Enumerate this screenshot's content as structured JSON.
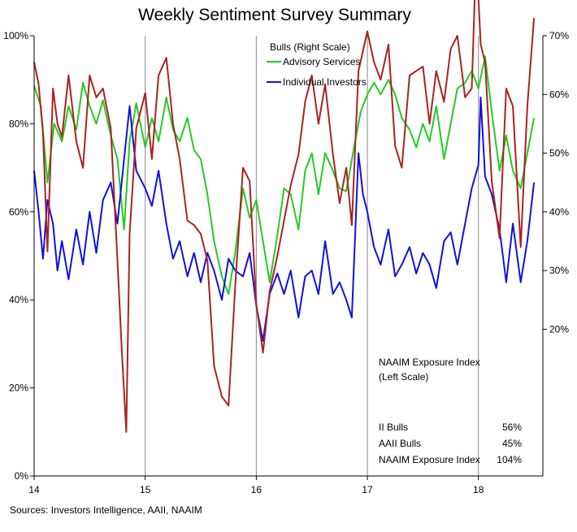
{
  "chart_data": {
    "type": "line",
    "title": "Weekly Sentiment Survey Summary",
    "source": "Sources: Investors Intelligence, AAII, NAAIM",
    "x_axis": {
      "ticks": [
        "14",
        "15",
        "16",
        "17",
        "18"
      ],
      "range": [
        2014.0,
        2018.58
      ],
      "vertical_gridlines_at": [
        2015,
        2016,
        2017,
        2018
      ]
    },
    "y_axis_left": {
      "ticks": [
        "0%",
        "20%",
        "40%",
        "60%",
        "80%",
        "100%"
      ],
      "range": [
        0,
        100
      ]
    },
    "y_axis_right": {
      "ticks": [
        "20%",
        "30%",
        "40%",
        "50%",
        "60%",
        "70%"
      ],
      "range": [
        -5,
        70
      ]
    },
    "legend": {
      "title": "Bulls (Right Scale)",
      "placement": "top-center"
    },
    "naaim_label": [
      "NAAIM  Exposure Index",
      "(Left Scale)"
    ],
    "latest_values": [
      {
        "label": "II Bulls",
        "value": "56%",
        "color": "#33cc33"
      },
      {
        "label": "AAII Bulls",
        "value": "45%",
        "color": "#0000ee"
      },
      {
        "label": "NAAIM Exposure Index",
        "value": "104%",
        "color": "#dd2222"
      }
    ],
    "series": [
      {
        "name": "Advisory Services",
        "axis": "right",
        "color": "#22cc22",
        "points": [
          [
            2014.0,
            61.5
          ],
          [
            2014.06,
            58.0
          ],
          [
            2014.12,
            45.0
          ],
          [
            2014.18,
            55.0
          ],
          [
            2014.25,
            52.0
          ],
          [
            2014.31,
            58.0
          ],
          [
            2014.38,
            54.0
          ],
          [
            2014.44,
            62.0
          ],
          [
            2014.5,
            58.0
          ],
          [
            2014.56,
            55.0
          ],
          [
            2014.62,
            59.0
          ],
          [
            2014.69,
            53.0
          ],
          [
            2014.75,
            49.0
          ],
          [
            2014.81,
            37.0
          ],
          [
            2014.86,
            52.0
          ],
          [
            2014.92,
            58.5
          ],
          [
            2015.0,
            51.0
          ],
          [
            2015.06,
            56.0
          ],
          [
            2015.12,
            52.0
          ],
          [
            2015.19,
            59.5
          ],
          [
            2015.25,
            54.0
          ],
          [
            2015.31,
            52.0
          ],
          [
            2015.38,
            56.0
          ],
          [
            2015.44,
            50.5
          ],
          [
            2015.5,
            49.0
          ],
          [
            2015.56,
            43.0
          ],
          [
            2015.62,
            35.0
          ],
          [
            2015.69,
            29.0
          ],
          [
            2015.75,
            26.0
          ],
          [
            2015.81,
            33.0
          ],
          [
            2015.88,
            44.0
          ],
          [
            2015.94,
            39.0
          ],
          [
            2016.0,
            42.0
          ],
          [
            2016.06,
            35.0
          ],
          [
            2016.12,
            28.0
          ],
          [
            2016.19,
            36.0
          ],
          [
            2016.25,
            44.0
          ],
          [
            2016.31,
            43.0
          ],
          [
            2016.38,
            37.0
          ],
          [
            2016.44,
            47.0
          ],
          [
            2016.5,
            50.0
          ],
          [
            2016.56,
            43.0
          ],
          [
            2016.62,
            50.0
          ],
          [
            2016.69,
            47.0
          ],
          [
            2016.75,
            44.0
          ],
          [
            2016.81,
            43.5
          ],
          [
            2016.88,
            51.0
          ],
          [
            2016.94,
            57.0
          ],
          [
            2017.0,
            60.0
          ],
          [
            2017.06,
            62.0
          ],
          [
            2017.12,
            60.0
          ],
          [
            2017.19,
            62.5
          ],
          [
            2017.25,
            60.0
          ],
          [
            2017.31,
            56.0
          ],
          [
            2017.38,
            54.0
          ],
          [
            2017.44,
            51.0
          ],
          [
            2017.5,
            55.0
          ],
          [
            2017.56,
            52.0
          ],
          [
            2017.62,
            58.0
          ],
          [
            2017.69,
            49.0
          ],
          [
            2017.75,
            55.0
          ],
          [
            2017.81,
            61.0
          ],
          [
            2017.88,
            62.0
          ],
          [
            2017.94,
            64.0
          ],
          [
            2018.0,
            61.0
          ],
          [
            2018.06,
            66.5
          ],
          [
            2018.12,
            57.0
          ],
          [
            2018.19,
            47.0
          ],
          [
            2018.25,
            53.0
          ],
          [
            2018.31,
            47.0
          ],
          [
            2018.38,
            44.0
          ],
          [
            2018.44,
            50.0
          ],
          [
            2018.5,
            56.0
          ]
        ]
      },
      {
        "name": "Individual Investors",
        "axis": "right",
        "color": "#1111dd",
        "points": [
          [
            2014.0,
            47.0
          ],
          [
            2014.04,
            40.0
          ],
          [
            2014.08,
            32.0
          ],
          [
            2014.12,
            42.0
          ],
          [
            2014.17,
            38.0
          ],
          [
            2014.21,
            30.0
          ],
          [
            2014.25,
            35.0
          ],
          [
            2014.31,
            28.5
          ],
          [
            2014.38,
            37.0
          ],
          [
            2014.44,
            31.0
          ],
          [
            2014.5,
            40.0
          ],
          [
            2014.56,
            33.0
          ],
          [
            2014.62,
            42.0
          ],
          [
            2014.69,
            45.0
          ],
          [
            2014.75,
            38.0
          ],
          [
            2014.81,
            49.0
          ],
          [
            2014.86,
            58.0
          ],
          [
            2014.92,
            47.0
          ],
          [
            2015.0,
            44.0
          ],
          [
            2015.06,
            41.0
          ],
          [
            2015.12,
            47.0
          ],
          [
            2015.19,
            38.0
          ],
          [
            2015.25,
            32.0
          ],
          [
            2015.31,
            35.0
          ],
          [
            2015.38,
            29.0
          ],
          [
            2015.44,
            33.0
          ],
          [
            2015.5,
            28.0
          ],
          [
            2015.56,
            33.0
          ],
          [
            2015.62,
            30.0
          ],
          [
            2015.69,
            25.0
          ],
          [
            2015.75,
            32.0
          ],
          [
            2015.81,
            30.0
          ],
          [
            2015.88,
            29.0
          ],
          [
            2015.94,
            33.0
          ],
          [
            2016.0,
            24.0
          ],
          [
            2016.06,
            18.0
          ],
          [
            2016.12,
            26.0
          ],
          [
            2016.19,
            29.5
          ],
          [
            2016.25,
            26.0
          ],
          [
            2016.31,
            30.0
          ],
          [
            2016.38,
            22.0
          ],
          [
            2016.44,
            29.0
          ],
          [
            2016.5,
            30.0
          ],
          [
            2016.56,
            26.0
          ],
          [
            2016.62,
            35.0
          ],
          [
            2016.69,
            26.0
          ],
          [
            2016.75,
            28.0
          ],
          [
            2016.81,
            25.0
          ],
          [
            2016.86,
            22.0
          ],
          [
            2016.92,
            50.0
          ],
          [
            2016.96,
            43.0
          ],
          [
            2017.0,
            40.0
          ],
          [
            2017.06,
            34.0
          ],
          [
            2017.12,
            31.0
          ],
          [
            2017.19,
            37.0
          ],
          [
            2017.25,
            29.0
          ],
          [
            2017.31,
            31.0
          ],
          [
            2017.38,
            34.0
          ],
          [
            2017.44,
            29.5
          ],
          [
            2017.5,
            33.0
          ],
          [
            2017.56,
            31.0
          ],
          [
            2017.62,
            27.0
          ],
          [
            2017.69,
            35.0
          ],
          [
            2017.75,
            36.5
          ],
          [
            2017.81,
            31.0
          ],
          [
            2017.88,
            38.0
          ],
          [
            2017.94,
            44.0
          ],
          [
            2018.0,
            48.0
          ],
          [
            2018.02,
            59.5
          ],
          [
            2018.06,
            46.0
          ],
          [
            2018.12,
            43.0
          ],
          [
            2018.19,
            37.0
          ],
          [
            2018.25,
            28.0
          ],
          [
            2018.31,
            38.0
          ],
          [
            2018.38,
            28.0
          ],
          [
            2018.44,
            35.0
          ],
          [
            2018.5,
            45.0
          ]
        ]
      },
      {
        "name": "NAAIM Exposure Index",
        "axis": "left",
        "color": "#aa2222",
        "points": [
          [
            2014.0,
            94.0
          ],
          [
            2014.04,
            89.0
          ],
          [
            2014.08,
            78.0
          ],
          [
            2014.12,
            51.0
          ],
          [
            2014.17,
            88.0
          ],
          [
            2014.21,
            80.0
          ],
          [
            2014.25,
            77.0
          ],
          [
            2014.31,
            91.0
          ],
          [
            2014.38,
            76.0
          ],
          [
            2014.44,
            70.0
          ],
          [
            2014.5,
            91.0
          ],
          [
            2014.56,
            86.0
          ],
          [
            2014.62,
            88.0
          ],
          [
            2014.69,
            79.0
          ],
          [
            2014.75,
            49.0
          ],
          [
            2014.79,
            28.0
          ],
          [
            2014.83,
            10.0
          ],
          [
            2014.86,
            55.0
          ],
          [
            2014.92,
            79.0
          ],
          [
            2015.0,
            87.0
          ],
          [
            2015.06,
            72.0
          ],
          [
            2015.12,
            91.0
          ],
          [
            2015.19,
            95.0
          ],
          [
            2015.25,
            80.0
          ],
          [
            2015.31,
            72.0
          ],
          [
            2015.38,
            58.0
          ],
          [
            2015.44,
            57.0
          ],
          [
            2015.5,
            55.0
          ],
          [
            2015.56,
            49.0
          ],
          [
            2015.62,
            25.0
          ],
          [
            2015.69,
            18.0
          ],
          [
            2015.75,
            16.0
          ],
          [
            2015.81,
            43.0
          ],
          [
            2015.88,
            70.0
          ],
          [
            2015.94,
            67.0
          ],
          [
            2016.0,
            39.0
          ],
          [
            2016.06,
            28.0
          ],
          [
            2016.12,
            42.0
          ],
          [
            2016.19,
            50.0
          ],
          [
            2016.25,
            58.0
          ],
          [
            2016.31,
            66.0
          ],
          [
            2016.38,
            73.0
          ],
          [
            2016.44,
            85.0
          ],
          [
            2016.5,
            91.0
          ],
          [
            2016.56,
            80.0
          ],
          [
            2016.62,
            89.0
          ],
          [
            2016.69,
            73.0
          ],
          [
            2016.75,
            62.0
          ],
          [
            2016.81,
            70.0
          ],
          [
            2016.86,
            57.0
          ],
          [
            2016.92,
            92.0
          ],
          [
            2017.0,
            101.0
          ],
          [
            2017.06,
            94.0
          ],
          [
            2017.12,
            90.0
          ],
          [
            2017.19,
            98.0
          ],
          [
            2017.25,
            75.0
          ],
          [
            2017.31,
            70.0
          ],
          [
            2017.38,
            91.0
          ],
          [
            2017.44,
            92.0
          ],
          [
            2017.5,
            93.0
          ],
          [
            2017.56,
            80.0
          ],
          [
            2017.62,
            92.0
          ],
          [
            2017.69,
            85.0
          ],
          [
            2017.75,
            97.0
          ],
          [
            2017.81,
            100.0
          ],
          [
            2017.88,
            86.0
          ],
          [
            2017.94,
            88.0
          ],
          [
            2017.98,
            119.0
          ],
          [
            2018.02,
            98.0
          ],
          [
            2018.06,
            94.0
          ],
          [
            2018.12,
            67.0
          ],
          [
            2018.19,
            54.0
          ],
          [
            2018.25,
            88.0
          ],
          [
            2018.31,
            84.0
          ],
          [
            2018.38,
            52.0
          ],
          [
            2018.44,
            84.0
          ],
          [
            2018.5,
            104.0
          ]
        ]
      }
    ]
  }
}
